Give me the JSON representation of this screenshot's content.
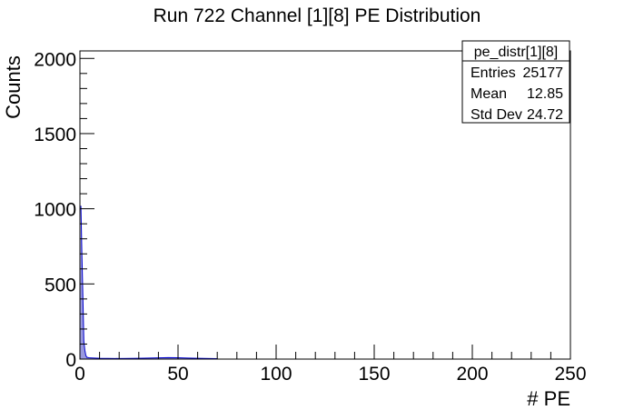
{
  "chart_data": {
    "type": "histogram",
    "title": "Run 722 Channel [1][8] PE Distribution",
    "xlabel": "# PE",
    "ylabel": "Counts",
    "xlim": [
      0,
      250
    ],
    "ylim": [
      0,
      2050
    ],
    "xticks": [
      0,
      50,
      100,
      150,
      200,
      250
    ],
    "yticks": [
      0,
      500,
      1000,
      1500,
      2000
    ],
    "grid": false,
    "fill_color": "#9999dd",
    "line_color": "#0000cc",
    "stats_box": {
      "name": "pe_distr[1][8]",
      "rows": [
        {
          "label": "Entries",
          "value": "25177"
        },
        {
          "label": "Mean",
          "value": "12.85"
        },
        {
          "label": "Std Dev",
          "value": "24.72"
        }
      ]
    },
    "bins": {
      "x": [
        0.5,
        1,
        1.5,
        2,
        2.5,
        3,
        3.5,
        5,
        10,
        20,
        30,
        40,
        45,
        50,
        55,
        60,
        70
      ],
      "y": [
        1020,
        700,
        420,
        120,
        60,
        25,
        12,
        8,
        5,
        4,
        5,
        8,
        10,
        9,
        7,
        5,
        3
      ]
    }
  }
}
